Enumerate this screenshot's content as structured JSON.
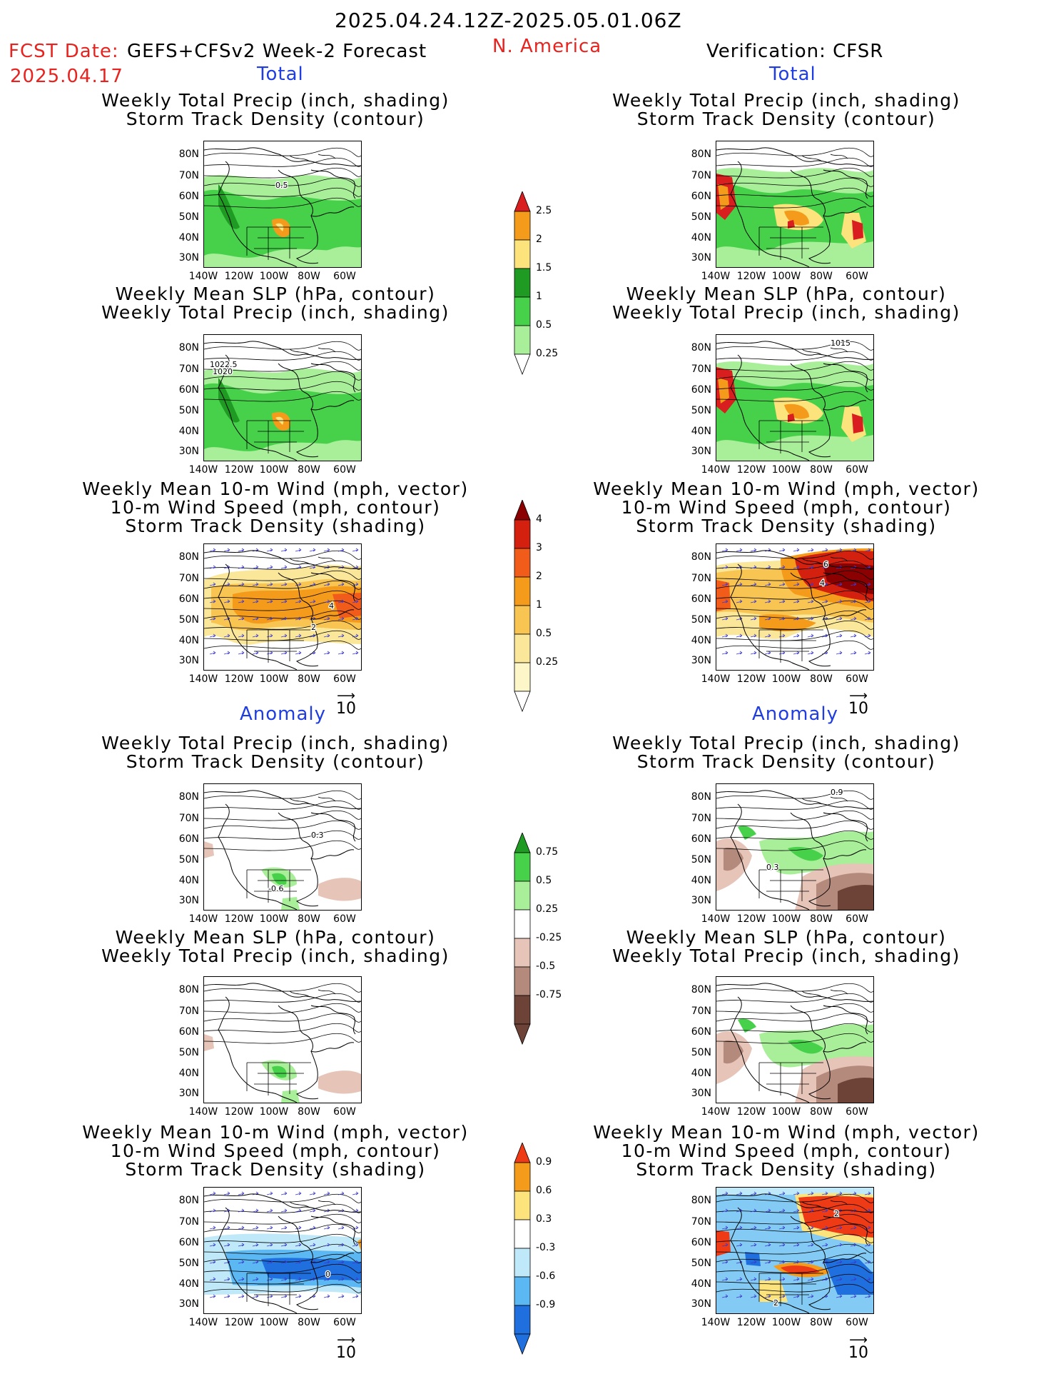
{
  "header": {
    "date_range": "2025.04.24.12Z-2025.05.01.06Z",
    "fcst_date_label": "FCST Date:",
    "fcst_date": "2025.04.17",
    "forecast_name": "GEFS+CFSv2 Week-2 Forecast",
    "region": "N. America",
    "verification": "Verification: CFSR"
  },
  "sections": {
    "total": "Total",
    "anomaly": "Anomaly"
  },
  "titles": {
    "precip_storm": [
      "Weekly Total Precip (inch, shading)",
      "Storm Track Density (contour)"
    ],
    "slp_precip": [
      "Weekly Mean SLP (hPa, contour)",
      "Weekly Total Precip (inch, shading)"
    ],
    "wind_storm": [
      "Weekly Mean 10-m Wind (mph, vector)",
      "10-m Wind Speed (mph, contour)",
      "Storm Track Density (shading)"
    ]
  },
  "axes": {
    "lat_labels": [
      "80N",
      "70N",
      "60N",
      "50N",
      "40N",
      "30N"
    ],
    "lon_labels": [
      "140W",
      "120W",
      "100W",
      "80W",
      "60W"
    ]
  },
  "vector_scale": "10",
  "colorbars": {
    "precip_total": {
      "labels": [
        "2.5",
        "2",
        "1.5",
        "1",
        "0.5",
        "0.25"
      ],
      "colors": [
        "#d81e1e",
        "#f59b1b",
        "#fde37c",
        "#1f9a22",
        "#47d14a",
        "#a9ef9a"
      ]
    },
    "storm_total": {
      "labels": [
        "4",
        "3",
        "2",
        "1",
        "0.5",
        "0.25"
      ],
      "colors": [
        "#8b0000",
        "#d4200f",
        "#f25c1b",
        "#f59b1b",
        "#f8c553",
        "#fbe79a",
        "#fdf6c8"
      ]
    },
    "precip_anom": {
      "labels": [
        "0.75",
        "0.5",
        "0.25",
        "-0.25",
        "-0.5",
        "-0.75"
      ],
      "colors": [
        "#1f9a22",
        "#47d14a",
        "#a9ef9a",
        "#ffffff",
        "#e6c4b8",
        "#b48a7c",
        "#6e4337"
      ]
    },
    "storm_anom": {
      "labels": [
        "0.9",
        "0.6",
        "0.3",
        "-0.3",
        "-0.6",
        "-0.9"
      ],
      "colors": [
        "#ee3a15",
        "#f59b1b",
        "#fde37c",
        "#ffffff",
        "#bfe9f9",
        "#5bb8f2",
        "#1f6fde"
      ]
    }
  },
  "contour_labels": {
    "fcst_total_storm": "0.5",
    "fcst_total_slp_a": "1022.5",
    "fcst_total_slp_b": "1020",
    "fcst_total_wind_a": "4",
    "fcst_total_wind_b": "2",
    "ver_total_slp": "1015",
    "ver_total_wind_a": "6",
    "ver_total_wind_b": "4",
    "fcst_anom_storm_a": "0.3",
    "fcst_anom_storm_b": "-0.6",
    "ver_anom_storm_a": "0.9",
    "ver_anom_storm_b": "0.3",
    "fcst_anom_wind": "0",
    "ver_anom_wind_a": "2",
    "ver_anom_wind_b": "2"
  }
}
